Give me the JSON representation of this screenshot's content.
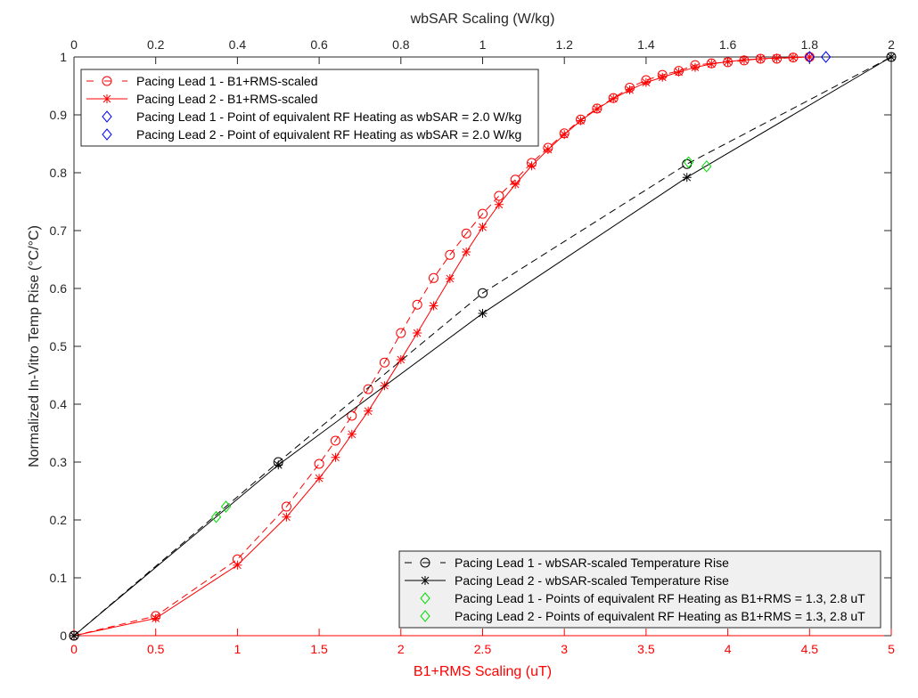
{
  "chart_data": {
    "type": "line",
    "xlabel_bottom": "B1+RMS Scaling (uT)",
    "xlabel_top": "wbSAR Scaling (W/kg)",
    "ylabel": "Normalized In-Vitro Temp Rise (°C/°C)",
    "xlim_bottom": [
      0,
      5
    ],
    "xlim_top": [
      0,
      2
    ],
    "ylim": [
      0,
      1
    ],
    "xticks_bottom": [
      "0",
      "0.5",
      "1",
      "1.5",
      "2",
      "2.5",
      "3",
      "3.5",
      "4",
      "4.5",
      "5"
    ],
    "xticks_top": [
      "0",
      "0.2",
      "0.4",
      "0.6",
      "0.8",
      "1",
      "1.2",
      "1.4",
      "1.6",
      "1.8",
      "2"
    ],
    "yticks": [
      "0",
      "0.1",
      "0.2",
      "0.3",
      "0.4",
      "0.5",
      "0.6",
      "0.7",
      "0.8",
      "0.9",
      "1"
    ],
    "colors": {
      "b1": "#ff0000",
      "wbsar": "#000000",
      "sar_points": "#0000ff",
      "b1_points": "#00dd00",
      "bottom_axis": "#ff0000"
    },
    "b1_x": [
      0,
      0.5,
      1,
      1.3,
      1.5,
      1.6,
      1.7,
      1.8,
      1.9,
      2.0,
      2.1,
      2.2,
      2.3,
      2.4,
      2.5,
      2.6,
      2.7,
      2.8,
      2.9,
      3.0,
      3.1,
      3.2,
      3.3,
      3.4,
      3.5,
      3.6,
      3.7,
      3.8,
      3.9,
      4.0,
      4.1,
      4.2,
      4.3,
      4.4,
      4.5
    ],
    "series": [
      {
        "name": "Pacing Lead 1 - B1+RMS-scaled",
        "axis": "bottom",
        "style": "dashed",
        "marker": "circle",
        "color": "#ff0000",
        "values": [
          0,
          0.034,
          0.132,
          0.223,
          0.297,
          0.337,
          0.38,
          0.426,
          0.472,
          0.523,
          0.572,
          0.618,
          0.658,
          0.695,
          0.729,
          0.76,
          0.788,
          0.817,
          0.843,
          0.868,
          0.892,
          0.911,
          0.929,
          0.947,
          0.96,
          0.969,
          0.976,
          0.986,
          0.989,
          0.991,
          0.994,
          0.997,
          0.997,
          0.999,
          1.0
        ]
      },
      {
        "name": "Pacing Lead 2 - B1+RMS-scaled",
        "axis": "bottom",
        "style": "solid",
        "marker": "star",
        "color": "#ff0000",
        "values": [
          0,
          0.03,
          0.122,
          0.205,
          0.272,
          0.308,
          0.348,
          0.388,
          0.432,
          0.477,
          0.523,
          0.57,
          0.617,
          0.663,
          0.706,
          0.745,
          0.78,
          0.812,
          0.84,
          0.866,
          0.89,
          0.91,
          0.928,
          0.943,
          0.956,
          0.965,
          0.974,
          0.982,
          0.988,
          0.992,
          0.995,
          0.997,
          0.998,
          0.999,
          1.0
        ]
      },
      {
        "name": "Pacing Lead 1 - Point of equivalent RF Heating as wbSAR = 2.0 W/kg",
        "axis": "bottom",
        "style": "none",
        "marker": "diamond",
        "color": "#0000ff",
        "x": [
          4.5
        ],
        "values": [
          1.0
        ]
      },
      {
        "name": "Pacing Lead 2 - Point of equivalent RF Heating as wbSAR = 2.0 W/kg",
        "axis": "bottom",
        "style": "none",
        "marker": "diamond",
        "color": "#0000ff",
        "x": [
          4.6
        ],
        "values": [
          1.0
        ]
      },
      {
        "name": "Pacing Lead 1 - wbSAR-scaled Temperature Rise",
        "axis": "top",
        "style": "dashed",
        "marker": "circle",
        "color": "#000000",
        "x": [
          0,
          0.5,
          1.0,
          1.5,
          2.0
        ],
        "values": [
          0,
          0.3,
          0.592,
          0.815,
          1.0
        ]
      },
      {
        "name": "Pacing Lead 2 - wbSAR-scaled Temperature Rise",
        "axis": "top",
        "style": "solid",
        "marker": "star",
        "color": "#000000",
        "x": [
          0,
          0.5,
          1.0,
          1.5,
          2.0
        ],
        "values": [
          0,
          0.295,
          0.557,
          0.792,
          1.0
        ]
      },
      {
        "name": "Pacing Lead 1 - Points of equivalent RF Heating as B1+RMS = 1.3, 2.8 uT",
        "axis": "bottom",
        "style": "none",
        "marker": "diamond",
        "color": "#00dd00",
        "x": [
          0.93,
          3.76
        ],
        "values": [
          0.223,
          0.818
        ]
      },
      {
        "name": "Pacing Lead 2 - Points of equivalent RF Heating as B1+RMS = 1.3, 2.8 uT",
        "axis": "bottom",
        "style": "none",
        "marker": "diamond",
        "color": "#00dd00",
        "x": [
          0.87,
          3.87
        ],
        "values": [
          0.205,
          0.811
        ]
      }
    ],
    "legends": [
      {
        "placement": "top-left",
        "entries": [
          0,
          1,
          2,
          3
        ]
      },
      {
        "placement": "bottom-right",
        "entries": [
          4,
          5,
          6,
          7
        ]
      }
    ]
  }
}
